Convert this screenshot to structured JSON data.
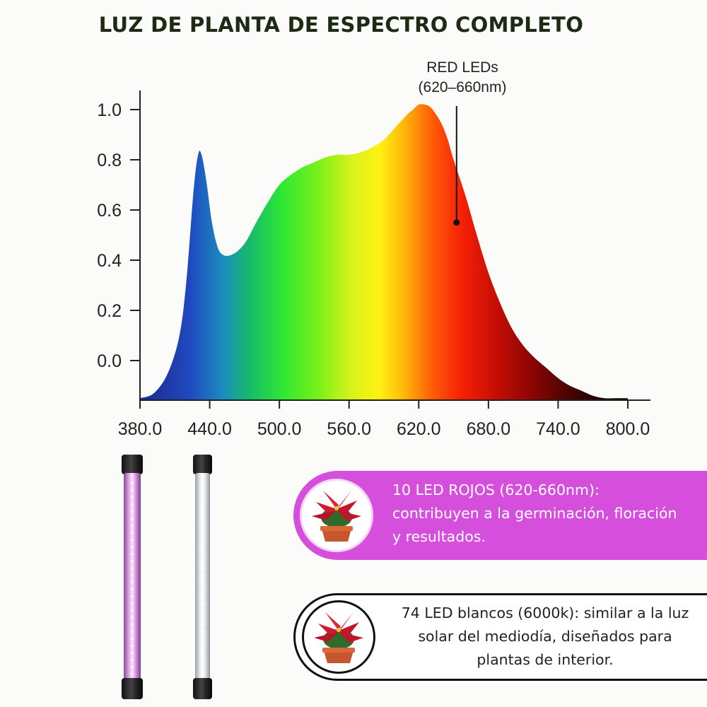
{
  "title": "LUZ DE PLANTA DE ESPECTRO COMPLETO",
  "chart_data": {
    "type": "area",
    "title": "LUZ DE PLANTA DE ESPECTRO COMPLETO",
    "xlabel": "",
    "ylabel": "",
    "xlim": [
      380,
      800
    ],
    "ylim": [
      -0.16,
      1.05
    ],
    "x_ticks": [
      "380.0",
      "440.0",
      "500.0",
      "560.0",
      "620.0",
      "680.0",
      "740.0",
      "800.0"
    ],
    "y_ticks": [
      "0.0",
      "0.2",
      "0.4",
      "0.6",
      "0.8",
      "1.0"
    ],
    "series": [
      {
        "x": [
          380,
          392,
          404,
          414,
          420,
          426,
          430,
          433,
          437,
          442,
          447,
          452,
          458,
          465,
          472,
          480,
          490,
          500,
          510,
          520,
          530,
          540,
          550,
          560,
          570,
          580,
          590,
          600,
          610,
          615,
          620,
          625,
          630,
          635,
          640,
          645,
          650,
          660,
          670,
          680,
          690,
          700,
          710,
          720,
          730,
          740,
          750,
          760,
          770,
          780,
          790,
          800
        ],
        "y": [
          -0.15,
          -0.13,
          -0.05,
          0.1,
          0.32,
          0.67,
          0.82,
          0.82,
          0.72,
          0.55,
          0.45,
          0.42,
          0.42,
          0.44,
          0.48,
          0.55,
          0.63,
          0.7,
          0.74,
          0.77,
          0.79,
          0.81,
          0.82,
          0.82,
          0.83,
          0.85,
          0.88,
          0.93,
          0.98,
          1.0,
          1.02,
          1.02,
          1.01,
          0.98,
          0.94,
          0.88,
          0.8,
          0.66,
          0.5,
          0.35,
          0.23,
          0.13,
          0.06,
          0.01,
          -0.03,
          -0.07,
          -0.1,
          -0.12,
          -0.14,
          -0.15,
          -0.15,
          -0.15
        ]
      }
    ],
    "annotations": [
      {
        "lines": [
          "RED LEDs",
          "(620–660nm)"
        ],
        "x": 655,
        "y": 0.55
      }
    ]
  },
  "info": {
    "red": {
      "lines": [
        "10 LED ROJOS (620-660nm):",
        "contribuyen a la germinación, floración",
        "y resultados."
      ],
      "color": "#d54fdc"
    },
    "white": {
      "lines": [
        "74 LED blancos (6000k): similar a la luz",
        "solar del mediodía, diseñados para",
        "plantas de interior."
      ]
    }
  }
}
